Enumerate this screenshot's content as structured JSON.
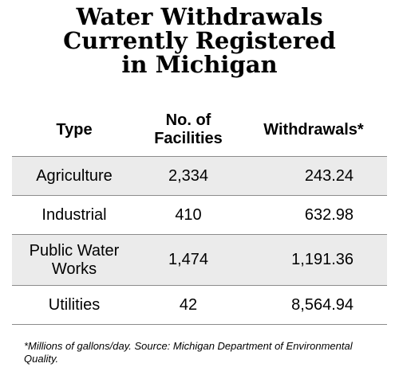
{
  "title_lines": [
    "Water Withdrawals",
    "Currently Registered",
    "in Michigan"
  ],
  "chart_data": {
    "type": "table",
    "columns": [
      "Type",
      "No. of\nFacilities",
      "Withdrawals*"
    ],
    "rows": [
      [
        "Agriculture",
        "2,334",
        "243.24"
      ],
      [
        "Industrial",
        "410",
        "632.98"
      ],
      [
        "Public Water\nWorks",
        "1,474",
        "1,191.36"
      ],
      [
        "Utilities",
        "42",
        "8,564.94"
      ]
    ]
  },
  "footnote": "*Millions of gallons/day.   Source: Michigan Department of Environmental Quality."
}
